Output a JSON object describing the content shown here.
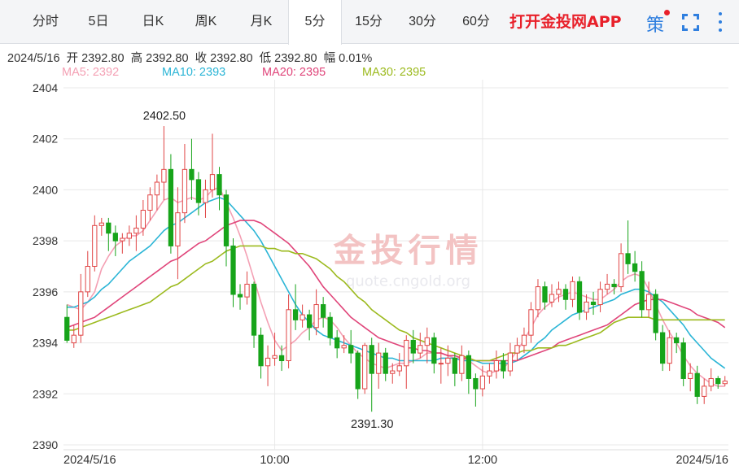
{
  "tabs": [
    {
      "label": "分时",
      "active": false
    },
    {
      "label": "5日",
      "active": false
    },
    {
      "label": "日K",
      "active": false
    },
    {
      "label": "周K",
      "active": false
    },
    {
      "label": "月K",
      "active": false
    },
    {
      "label": "5分",
      "active": true
    },
    {
      "label": "15分",
      "active": false
    },
    {
      "label": "30分",
      "active": false
    },
    {
      "label": "60分",
      "active": false
    }
  ],
  "promo_label": "打开金投网APP",
  "policy_icon_glyph": "策",
  "icons": {
    "policy": "policy-icon",
    "fullscreen": "fullscreen-icon",
    "more": "more-vertical-icon"
  },
  "ohlc": {
    "date": "2024/5/16",
    "open_label": "开",
    "open": "2392.80",
    "high_label": "高",
    "high": "2392.80",
    "close_label": "收",
    "close": "2392.80",
    "low_label": "低",
    "low": "2392.80",
    "change_label": "幅",
    "change": "0.01%"
  },
  "ma_legend": [
    {
      "text": "MA5: 2392",
      "color": "#f4a0b4"
    },
    {
      "text": "MA10: 2393",
      "color": "#2bb5d6"
    },
    {
      "text": "MA20: 2395",
      "color": "#e0457a"
    },
    {
      "text": "MA30: 2395",
      "color": "#9cba1e"
    }
  ],
  "watermark": {
    "text": "金投行情",
    "sub": "quote.cngold.org"
  },
  "colors": {
    "up": "#e04545",
    "down": "#17a41a",
    "grid": "#e8e8e8",
    "accent": "#2f7fdf"
  },
  "chart_data": {
    "type": "candlestick",
    "ylim": [
      2390,
      2404
    ],
    "yticks": [
      2390,
      2392,
      2394,
      2396,
      2398,
      2400,
      2402,
      2404
    ],
    "xticks": [
      {
        "index": 0,
        "label": "2024/5/16"
      },
      {
        "index": 30,
        "label": "10:00"
      },
      {
        "index": 60,
        "label": "12:00"
      },
      {
        "index": 95,
        "label": "2024/5/16"
      }
    ],
    "annotations": [
      {
        "label": "2402.50",
        "index": 15,
        "value": 2402.5
      },
      {
        "label": "2391.30",
        "index": 45,
        "value": 2391.3
      }
    ],
    "candles": [
      [
        2395.0,
        2394.1,
        2395.5,
        2394.0
      ],
      [
        2394.0,
        2394.3,
        2394.7,
        2393.8
      ],
      [
        2394.3,
        2396.0,
        2396.7,
        2394.0
      ],
      [
        2396.0,
        2397.0,
        2397.6,
        2395.8
      ],
      [
        2397.0,
        2398.6,
        2399.0,
        2396.8
      ],
      [
        2398.6,
        2398.7,
        2398.9,
        2398.2
      ],
      [
        2398.7,
        2398.3,
        2398.9,
        2397.6
      ],
      [
        2398.3,
        2398.0,
        2398.6,
        2397.4
      ],
      [
        2398.0,
        2398.1,
        2398.3,
        2397.5
      ],
      [
        2398.1,
        2398.3,
        2398.6,
        2397.8
      ],
      [
        2398.3,
        2398.5,
        2399.0,
        2397.6
      ],
      [
        2398.5,
        2399.2,
        2399.6,
        2398.2
      ],
      [
        2399.2,
        2399.8,
        2400.1,
        2398.8
      ],
      [
        2399.8,
        2400.3,
        2400.6,
        2399.2
      ],
      [
        2400.3,
        2400.8,
        2402.5,
        2399.6
      ],
      [
        2400.8,
        2397.8,
        2401.4,
        2397.5
      ],
      [
        2397.8,
        2399.1,
        2400.1,
        2396.5
      ],
      [
        2399.1,
        2400.8,
        2401.8,
        2398.7
      ],
      [
        2400.8,
        2400.4,
        2402.0,
        2399.6
      ],
      [
        2400.4,
        2399.5,
        2400.7,
        2399.0
      ],
      [
        2399.5,
        2400.0,
        2400.4,
        2398.9
      ],
      [
        2400.0,
        2400.6,
        2402.2,
        2399.7
      ],
      [
        2400.6,
        2399.8,
        2400.9,
        2399.2
      ],
      [
        2399.8,
        2397.8,
        2400.0,
        2397.0
      ],
      [
        2397.8,
        2395.9,
        2398.1,
        2395.4
      ],
      [
        2395.9,
        2395.8,
        2396.3,
        2395.3
      ],
      [
        2395.8,
        2396.3,
        2396.8,
        2395.5
      ],
      [
        2396.3,
        2394.3,
        2396.4,
        2393.8
      ],
      [
        2394.3,
        2393.1,
        2394.6,
        2392.6
      ],
      [
        2393.1,
        2393.4,
        2393.9,
        2392.3
      ],
      [
        2393.4,
        2393.5,
        2394.4,
        2393.1
      ],
      [
        2393.5,
        2393.3,
        2393.9,
        2392.9
      ],
      [
        2393.3,
        2395.3,
        2395.9,
        2393.0
      ],
      [
        2395.3,
        2394.9,
        2396.3,
        2394.5
      ],
      [
        2394.9,
        2395.1,
        2395.5,
        2394.6
      ],
      [
        2395.1,
        2394.6,
        2395.3,
        2394.1
      ],
      [
        2394.6,
        2395.5,
        2396.1,
        2394.3
      ],
      [
        2395.5,
        2395.0,
        2395.8,
        2394.6
      ],
      [
        2395.0,
        2394.2,
        2395.2,
        2393.9
      ],
      [
        2394.2,
        2393.8,
        2394.5,
        2393.4
      ],
      [
        2393.8,
        2393.9,
        2394.3,
        2393.6
      ],
      [
        2393.9,
        2393.6,
        2394.5,
        2393.2
      ],
      [
        2393.6,
        2392.2,
        2393.7,
        2391.8
      ],
      [
        2392.2,
        2393.9,
        2394.0,
        2392.0
      ],
      [
        2393.9,
        2392.8,
        2394.2,
        2391.3
      ],
      [
        2392.8,
        2393.6,
        2394.0,
        2392.2
      ],
      [
        2393.6,
        2392.8,
        2393.8,
        2392.5
      ],
      [
        2392.8,
        2392.9,
        2393.2,
        2392.4
      ],
      [
        2392.9,
        2393.1,
        2393.6,
        2392.7
      ],
      [
        2393.1,
        2394.1,
        2394.3,
        2392.2
      ],
      [
        2394.1,
        2393.6,
        2394.5,
        2393.2
      ],
      [
        2393.6,
        2393.9,
        2394.4,
        2393.4
      ],
      [
        2393.9,
        2394.2,
        2394.6,
        2393.2
      ],
      [
        2394.2,
        2393.2,
        2394.4,
        2392.8
      ],
      [
        2393.2,
        2393.2,
        2393.8,
        2392.4
      ],
      [
        2393.2,
        2393.4,
        2393.9,
        2392.7
      ],
      [
        2393.4,
        2392.8,
        2393.6,
        2392.3
      ],
      [
        2392.8,
        2393.5,
        2393.9,
        2392.5
      ],
      [
        2393.5,
        2392.6,
        2393.7,
        2392.0
      ],
      [
        2392.6,
        2392.2,
        2392.8,
        2391.5
      ],
      [
        2392.2,
        2392.7,
        2393.1,
        2391.9
      ],
      [
        2392.7,
        2392.9,
        2393.2,
        2392.4
      ],
      [
        2392.9,
        2393.3,
        2393.7,
        2392.6
      ],
      [
        2393.3,
        2392.9,
        2393.6,
        2392.6
      ],
      [
        2392.9,
        2393.6,
        2394.0,
        2392.7
      ],
      [
        2393.6,
        2393.9,
        2394.2,
        2393.3
      ],
      [
        2393.9,
        2394.3,
        2394.6,
        2393.6
      ],
      [
        2394.3,
        2395.3,
        2395.6,
        2394.0
      ],
      [
        2395.3,
        2396.2,
        2396.5,
        2395.0
      ],
      [
        2396.2,
        2395.6,
        2396.4,
        2395.3
      ],
      [
        2395.6,
        2395.9,
        2396.3,
        2395.4
      ],
      [
        2395.9,
        2396.1,
        2396.4,
        2395.6
      ],
      [
        2396.1,
        2395.7,
        2396.3,
        2395.3
      ],
      [
        2395.7,
        2396.4,
        2396.6,
        2395.4
      ],
      [
        2396.4,
        2395.2,
        2396.6,
        2394.9
      ],
      [
        2395.2,
        2395.6,
        2395.9,
        2394.9
      ],
      [
        2395.6,
        2395.5,
        2396.0,
        2395.1
      ],
      [
        2395.5,
        2396.1,
        2396.4,
        2395.2
      ],
      [
        2396.1,
        2396.3,
        2396.7,
        2395.9
      ],
      [
        2396.3,
        2396.2,
        2396.5,
        2395.9
      ],
      [
        2396.2,
        2397.5,
        2397.9,
        2396.0
      ],
      [
        2397.5,
        2397.1,
        2398.8,
        2396.7
      ],
      [
        2397.1,
        2396.8,
        2397.6,
        2396.4
      ],
      [
        2396.8,
        2395.3,
        2397.2,
        2395.0
      ],
      [
        2395.3,
        2395.9,
        2396.4,
        2395.0
      ],
      [
        2395.9,
        2394.4,
        2396.1,
        2394.1
      ],
      [
        2394.4,
        2393.2,
        2394.7,
        2392.9
      ],
      [
        2393.2,
        2394.2,
        2394.5,
        2392.9
      ],
      [
        2394.2,
        2394.0,
        2394.4,
        2393.6
      ],
      [
        2394.0,
        2392.6,
        2394.2,
        2392.3
      ],
      [
        2392.6,
        2392.8,
        2393.2,
        2392.1
      ],
      [
        2392.8,
        2391.9,
        2393.1,
        2391.6
      ],
      [
        2391.9,
        2392.3,
        2392.6,
        2391.6
      ],
      [
        2392.3,
        2392.6,
        2393.0,
        2392.1
      ],
      [
        2392.6,
        2392.4,
        2392.7,
        2392.2
      ],
      [
        2392.4,
        2392.5,
        2392.7,
        2392.3
      ]
    ],
    "ma_lines": [
      {
        "name": "MA5",
        "color": "#f4a0b4",
        "values": [
          2395.5,
          2395.4,
          2395.3,
          2395.6,
          2396.0,
          2396.9,
          2397.4,
          2397.8,
          2398.0,
          2398.2,
          2398.2,
          2398.4,
          2398.8,
          2399.2,
          2399.6,
          2399.7,
          2399.5,
          2399.6,
          2399.7,
          2399.6,
          2399.7,
          2400.0,
          2400.1,
          2399.5,
          2398.9,
          2398.2,
          2397.4,
          2396.5,
          2395.6,
          2394.8,
          2394.1,
          2393.7,
          2393.9,
          2394.1,
          2394.4,
          2394.6,
          2394.9,
          2395.0,
          2394.9,
          2394.6,
          2394.2,
          2393.9,
          2393.6,
          2393.4,
          2393.2,
          2393.1,
          2393.0,
          2393.1,
          2393.2,
          2393.2,
          2393.3,
          2393.4,
          2393.6,
          2393.6,
          2393.6,
          2393.5,
          2393.4,
          2393.4,
          2393.3,
          2393.1,
          2392.9,
          2392.8,
          2392.9,
          2393.0,
          2393.3,
          2393.7,
          2394.1,
          2394.6,
          2395.1,
          2395.4,
          2395.6,
          2395.8,
          2395.9,
          2396.0,
          2395.9,
          2395.8,
          2395.7,
          2395.7,
          2395.9,
          2396.1,
          2396.4,
          2396.6,
          2396.7,
          2396.6,
          2396.1,
          2395.5,
          2394.9,
          2394.4,
          2394.0,
          2393.5,
          2393.1,
          2392.8,
          2392.6,
          2392.4,
          2392.3,
          2392.3
        ]
      },
      {
        "name": "MA10",
        "color": "#2bb5d6",
        "values": [
          2395.4,
          2395.4,
          2395.5,
          2395.6,
          2395.8,
          2396.1,
          2396.3,
          2396.6,
          2396.9,
          2397.2,
          2397.4,
          2397.6,
          2397.8,
          2398.1,
          2398.4,
          2398.6,
          2398.7,
          2398.9,
          2399.1,
          2399.3,
          2399.5,
          2399.6,
          2399.7,
          2399.6,
          2399.3,
          2399.0,
          2398.7,
          2398.4,
          2398.0,
          2397.5,
          2397.0,
          2396.5,
          2396.0,
          2395.5,
          2395.1,
          2394.8,
          2394.5,
          2394.3,
          2394.2,
          2394.1,
          2394.0,
          2393.9,
          2393.8,
          2393.7,
          2393.6,
          2393.5,
          2393.4,
          2393.4,
          2393.3,
          2393.3,
          2393.3,
          2393.3,
          2393.3,
          2393.3,
          2393.4,
          2393.4,
          2393.4,
          2393.3,
          2393.3,
          2393.3,
          2393.2,
          2393.2,
          2393.2,
          2393.2,
          2393.2,
          2393.3,
          2393.5,
          2393.7,
          2394.0,
          2394.2,
          2394.5,
          2394.7,
          2394.9,
          2395.1,
          2395.2,
          2395.3,
          2395.4,
          2395.5,
          2395.6,
          2395.7,
          2395.9,
          2396.0,
          2396.1,
          2396.1,
          2396.0,
          2395.8,
          2395.6,
          2395.3,
          2395.0,
          2394.7,
          2394.3,
          2394.0,
          2393.7,
          2393.4,
          2393.2,
          2393.0
        ]
      },
      {
        "name": "MA20",
        "color": "#e0457a",
        "values": [
          2394.6,
          2394.7,
          2394.8,
          2394.9,
          2395.0,
          2395.2,
          2395.4,
          2395.6,
          2395.8,
          2396.0,
          2396.2,
          2396.4,
          2396.6,
          2396.8,
          2397.0,
          2397.2,
          2397.3,
          2397.5,
          2397.7,
          2397.9,
          2398.0,
          2398.2,
          2398.4,
          2398.6,
          2398.7,
          2398.8,
          2398.8,
          2398.8,
          2398.7,
          2398.5,
          2398.3,
          2398.1,
          2397.9,
          2397.6,
          2397.3,
          2397.0,
          2396.6,
          2396.2,
          2395.9,
          2395.6,
          2395.3,
          2395.0,
          2394.8,
          2394.6,
          2394.4,
          2394.2,
          2394.1,
          2394.0,
          2393.9,
          2393.8,
          2393.8,
          2393.7,
          2393.7,
          2393.6,
          2393.6,
          2393.5,
          2393.5,
          2393.4,
          2393.4,
          2393.3,
          2393.3,
          2393.3,
          2393.3,
          2393.3,
          2393.3,
          2393.3,
          2393.4,
          2393.5,
          2393.6,
          2393.7,
          2393.8,
          2394.0,
          2394.1,
          2394.2,
          2394.3,
          2394.4,
          2394.5,
          2394.6,
          2394.7,
          2394.9,
          2395.1,
          2395.3,
          2395.5,
          2395.6,
          2395.7,
          2395.7,
          2395.7,
          2395.6,
          2395.5,
          2395.4,
          2395.3,
          2395.1,
          2395.0,
          2394.9,
          2394.8,
          2394.6
        ]
      },
      {
        "name": "MA30",
        "color": "#9cba1e",
        "values": [
          2394.5,
          2394.5,
          2394.6,
          2394.7,
          2394.8,
          2394.9,
          2395.0,
          2395.1,
          2395.2,
          2395.3,
          2395.4,
          2395.5,
          2395.6,
          2395.8,
          2396.0,
          2396.2,
          2396.3,
          2396.5,
          2396.7,
          2396.9,
          2397.1,
          2397.2,
          2397.4,
          2397.6,
          2397.7,
          2397.8,
          2397.8,
          2397.8,
          2397.8,
          2397.7,
          2397.7,
          2397.6,
          2397.6,
          2397.5,
          2397.5,
          2397.4,
          2397.3,
          2397.1,
          2396.9,
          2396.6,
          2396.4,
          2396.1,
          2395.8,
          2395.6,
          2395.3,
          2395.1,
          2394.9,
          2394.7,
          2394.5,
          2394.4,
          2394.2,
          2394.1,
          2394.0,
          2393.9,
          2393.8,
          2393.7,
          2393.6,
          2393.5,
          2393.4,
          2393.3,
          2393.3,
          2393.3,
          2393.4,
          2393.5,
          2393.6,
          2393.6,
          2393.7,
          2393.7,
          2393.8,
          2393.8,
          2393.8,
          2393.9,
          2393.9,
          2394.0,
          2394.1,
          2394.2,
          2394.3,
          2394.4,
          2394.6,
          2394.8,
          2394.9,
          2395.0,
          2395.0,
          2395.0,
          2395.0,
          2394.9,
          2394.9,
          2394.9,
          2394.9,
          2394.9,
          2394.9,
          2394.9,
          2394.9,
          2394.9,
          2394.9,
          2394.9
        ]
      }
    ]
  }
}
